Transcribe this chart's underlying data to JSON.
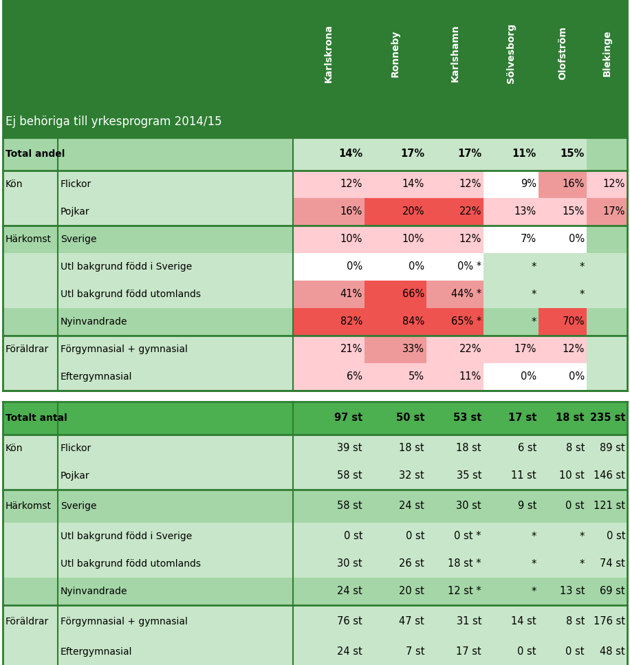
{
  "col_header_rotated": [
    "Karlskrona",
    "Ronneby",
    "Karlshamn",
    "Sölvesborg",
    "Olofström",
    "Blekinge"
  ],
  "main_label": "Ej behöriga till yrkesprogram 2014/15",
  "dark_green": "#2e7d32",
  "med_green": "#4caf50",
  "light_green": "#a5d6a7",
  "lighter_green": "#c8e6c9",
  "top_table": {
    "rows": [
      {
        "cat1": "Total andel",
        "cat2": "",
        "values": [
          "14%",
          "17%",
          "17%",
          "11%",
          "15%",
          ""
        ],
        "bg": [
          "#c8e6c9",
          "#c8e6c9",
          "#c8e6c9",
          "#c8e6c9",
          "#c8e6c9",
          "#a5d6a7"
        ],
        "bold": true,
        "row_bg": "#a5d6a7"
      },
      {
        "cat1": "Kön",
        "cat2": "Flickor",
        "values": [
          "12%",
          "14%",
          "12%",
          "9%",
          "16%",
          "12%"
        ],
        "bg": [
          "#ffcdd2",
          "#ffcdd2",
          "#ffcdd2",
          "#ffffff",
          "#ef9a9a",
          "#ffcdd2"
        ],
        "bold": false,
        "row_bg": "#c8e6c9"
      },
      {
        "cat1": "",
        "cat2": "Pojkar",
        "values": [
          "16%",
          "20%",
          "22%",
          "13%",
          "15%",
          "17%"
        ],
        "bg": [
          "#ef9a9a",
          "#ef5350",
          "#ef5350",
          "#ffcdd2",
          "#ffcdd2",
          "#ef9a9a"
        ],
        "bold": false,
        "row_bg": "#c8e6c9"
      },
      {
        "cat1": "Härkomst",
        "cat2": "Sverige",
        "values": [
          "10%",
          "10%",
          "12%",
          "7%",
          "0%",
          ""
        ],
        "bg": [
          "#ffcdd2",
          "#ffcdd2",
          "#ffcdd2",
          "#ffffff",
          "#ffffff",
          "#a5d6a7"
        ],
        "bold": false,
        "row_bg": "#a5d6a7"
      },
      {
        "cat1": "",
        "cat2": "Utl bakgrund född i Sverige",
        "values": [
          "0%",
          "0%",
          "0% *",
          "*",
          "*",
          ""
        ],
        "bg": [
          "#ffffff",
          "#ffffff",
          "#ffffff",
          "#c8e6c9",
          "#c8e6c9",
          "#c8e6c9"
        ],
        "bold": false,
        "row_bg": "#c8e6c9"
      },
      {
        "cat1": "",
        "cat2": "Utl bakgrund född utomlands",
        "values": [
          "41%",
          "66%",
          "44% *",
          "*",
          "*",
          ""
        ],
        "bg": [
          "#ef9a9a",
          "#ef5350",
          "#ef9a9a",
          "#c8e6c9",
          "#c8e6c9",
          "#c8e6c9"
        ],
        "bold": false,
        "row_bg": "#c8e6c9"
      },
      {
        "cat1": "",
        "cat2": "Nyinvandrade",
        "values": [
          "82%",
          "84%",
          "65% *",
          "*",
          "70%",
          ""
        ],
        "bg": [
          "#ef5350",
          "#ef5350",
          "#ef5350",
          "#a5d6a7",
          "#ef5350",
          "#a5d6a7"
        ],
        "bold": false,
        "row_bg": "#a5d6a7"
      },
      {
        "cat1": "Föräldrar",
        "cat2": "Förgymnasial + gymnasial",
        "values": [
          "21%",
          "33%",
          "22%",
          "17%",
          "12%",
          ""
        ],
        "bg": [
          "#ffcdd2",
          "#ef9a9a",
          "#ffcdd2",
          "#ffcdd2",
          "#ffcdd2",
          "#c8e6c9"
        ],
        "bold": false,
        "row_bg": "#c8e6c9"
      },
      {
        "cat1": "",
        "cat2": "Eftergymnasial",
        "values": [
          "6%",
          "5%",
          "11%",
          "0%",
          "0%",
          ""
        ],
        "bg": [
          "#ffcdd2",
          "#ffcdd2",
          "#ffcdd2",
          "#ffffff",
          "#ffffff",
          "#c8e6c9"
        ],
        "bold": false,
        "row_bg": "#c8e6c9"
      }
    ]
  },
  "bottom_table": {
    "rows": [
      {
        "cat1": "Totalt antal",
        "cat2": "",
        "values": [
          "97 st",
          "50 st",
          "53 st",
          "17 st",
          "18 st",
          "235 st"
        ],
        "bold": true,
        "row_bg": "#4caf50"
      },
      {
        "cat1": "Kön",
        "cat2": "Flickor",
        "values": [
          "39 st",
          "18 st",
          "18 st",
          "6 st",
          "8 st",
          "89 st"
        ],
        "bold": false,
        "row_bg": "#c8e6c9"
      },
      {
        "cat1": "",
        "cat2": "Pojkar",
        "values": [
          "58 st",
          "32 st",
          "35 st",
          "11 st",
          "10 st",
          "146 st"
        ],
        "bold": false,
        "row_bg": "#c8e6c9"
      },
      {
        "cat1": "Härkomst",
        "cat2": "Sverige",
        "values": [
          "58 st",
          "24 st",
          "30 st",
          "9 st",
          "0 st",
          "121 st"
        ],
        "bold": false,
        "row_bg": "#a5d6a7"
      },
      {
        "cat1": "",
        "cat2": "Utl bakgrund född i Sverige",
        "values": [
          "0 st",
          "0 st",
          "0 st *",
          "*",
          "*",
          "0 st"
        ],
        "bold": false,
        "row_bg": "#c8e6c9"
      },
      {
        "cat1": "",
        "cat2": "Utl bakgrund född utomlands",
        "values": [
          "30 st",
          "26 st",
          "18 st *",
          "*",
          "*",
          "74 st"
        ],
        "bold": false,
        "row_bg": "#c8e6c9"
      },
      {
        "cat1": "",
        "cat2": "Nyinvandrade",
        "values": [
          "24 st",
          "20 st",
          "12 st *",
          "*",
          "13 st",
          "69 st"
        ],
        "bold": false,
        "row_bg": "#a5d6a7"
      },
      {
        "cat1": "Föräldrar",
        "cat2": "Förgymnasial + gymnasial",
        "values": [
          "76 st",
          "47 st",
          "31 st",
          "14 st",
          "8 st",
          "176 st"
        ],
        "bold": false,
        "row_bg": "#c8e6c9"
      },
      {
        "cat1": "",
        "cat2": "Eftergymnasial",
        "values": [
          "24 st",
          "7 st",
          "17 st",
          "0 st",
          "0 st",
          "48 st"
        ],
        "bold": false,
        "row_bg": "#c8e6c9"
      }
    ]
  }
}
